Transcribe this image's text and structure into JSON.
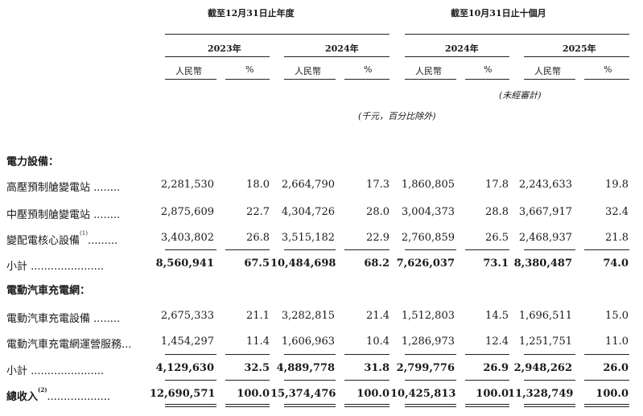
{
  "header": {
    "group1": "截至12月31日止年度",
    "group2": "截至10月31日止十個月",
    "years": [
      "2023年",
      "2024年",
      "2024年",
      "2025年"
    ],
    "currency": "人民幣",
    "pct": "%",
    "unaudited": "(未經審計)",
    "units_note": "(千元，百分比除外)"
  },
  "sections": [
    {
      "title": "電力設備：",
      "rows": [
        {
          "label": "高壓預制艙變電站 ........",
          "footnote": "",
          "values": [
            "2,281,530",
            "18.0",
            "2,664,790",
            "17.3",
            "1,860,805",
            "17.8",
            "2,243,633",
            "19.8"
          ]
        },
        {
          "label": "中壓預制艙變電站 ........",
          "footnote": "",
          "values": [
            "2,875,609",
            "22.7",
            "4,304,726",
            "28.0",
            "3,004,373",
            "28.8",
            "3,667,917",
            "32.4"
          ]
        },
        {
          "label": "變配電核心設備",
          "footnote": "(1)",
          "suffix": ".........",
          "values": [
            "3,403,802",
            "26.8",
            "3,515,182",
            "22.9",
            "2,760,859",
            "26.5",
            "2,468,937",
            "21.8"
          ]
        }
      ],
      "subtotal": {
        "label": "小計 ......................",
        "values": [
          "8,560,941",
          "67.5",
          "10,484,698",
          "68.2",
          "7,626,037",
          "73.1",
          "8,380,487",
          "74.0"
        ]
      }
    },
    {
      "title": "電動汽車充電網：",
      "rows": [
        {
          "label": "電動汽車充電設備 ........",
          "footnote": "",
          "values": [
            "2,675,333",
            "21.1",
            "3,282,815",
            "21.4",
            "1,512,803",
            "14.5",
            "1,696,511",
            "15.0"
          ]
        },
        {
          "label": "電動汽車充電網運營服務...",
          "footnote": "",
          "values": [
            "1,454,297",
            "11.4",
            "1,606,963",
            "10.4",
            "1,286,973",
            "12.4",
            "1,251,751",
            "11.0"
          ]
        }
      ],
      "subtotal": {
        "label": "小計 ......................",
        "values": [
          "4,129,630",
          "32.5",
          "4,889,778",
          "31.8",
          "2,799,776",
          "26.9",
          "2,948,262",
          "26.0"
        ]
      }
    }
  ],
  "total": {
    "label": "總收入",
    "footnote": "(2)",
    "suffix": "...................",
    "values": [
      "12,690,571",
      "100.0",
      "15,374,476",
      "100.0",
      "10,425,813",
      "100.0",
      "11,328,749",
      "100.0"
    ]
  }
}
